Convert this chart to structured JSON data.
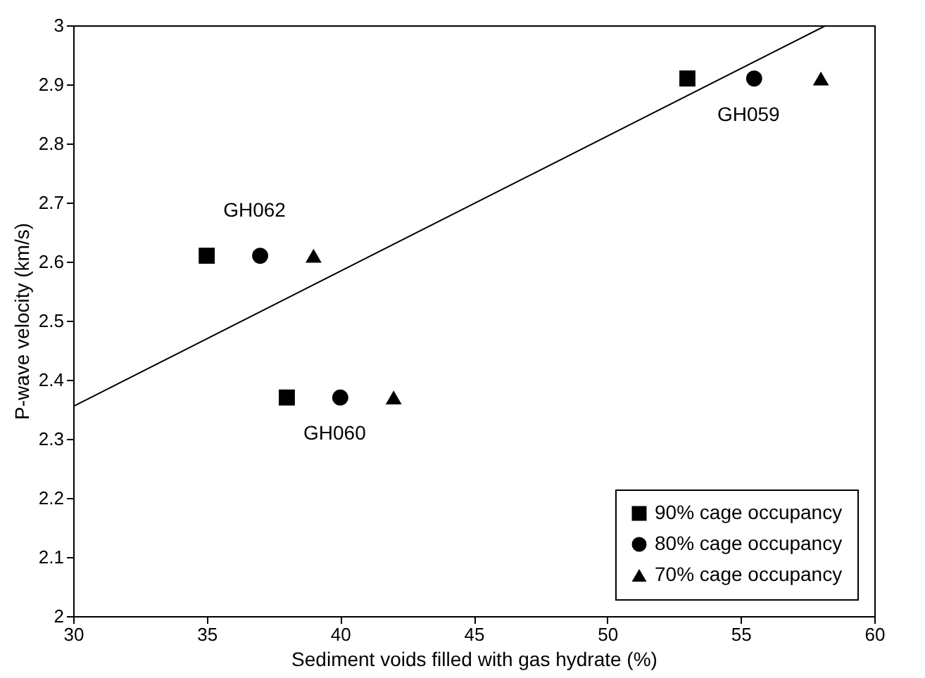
{
  "chart_data": {
    "type": "scatter",
    "xlabel": "Sediment voids filled with gas hydrate (%)",
    "ylabel": "P-wave velocity (km/s)",
    "xlim": [
      30,
      60
    ],
    "xticks": [
      30,
      35,
      40,
      45,
      50,
      55,
      60
    ],
    "ylim": [
      2,
      3
    ],
    "yticks": [
      2,
      2.1,
      2.2,
      2.3,
      2.4,
      2.5,
      2.6,
      2.7,
      2.8,
      2.9,
      {
        "value": 3,
        "label": "3"
      }
    ],
    "grid": false,
    "legend": "bottom right",
    "series": [
      {
        "name": "90% cage occupancy",
        "color": "#000000",
        "marker": "square",
        "x": [
          35,
          38,
          53
        ],
        "values": [
          2.61,
          2.37,
          2.91
        ]
      },
      {
        "name": "80% cage occupancy",
        "color": "#000000",
        "marker": "circle",
        "x": [
          37,
          40,
          55.5
        ],
        "values": [
          2.61,
          2.37,
          2.91
        ]
      },
      {
        "name": "70% cage occupancy",
        "color": "#000000",
        "marker": "triangle",
        "x": [
          39,
          42,
          58
        ],
        "values": [
          2.61,
          2.37,
          2.91
        ]
      },
      {
        "type": "line",
        "color": "#000000",
        "x": [
          30,
          58.2
        ],
        "values": [
          2.355,
          3.0
        ]
      }
    ],
    "annotations": [
      {
        "text": "GH062",
        "x": 37,
        "y": 2.61
      },
      {
        "text": "GH060",
        "x": 40,
        "y": 2.37
      },
      {
        "text": "GH059",
        "x": 55.5,
        "y": 2.91
      }
    ]
  }
}
